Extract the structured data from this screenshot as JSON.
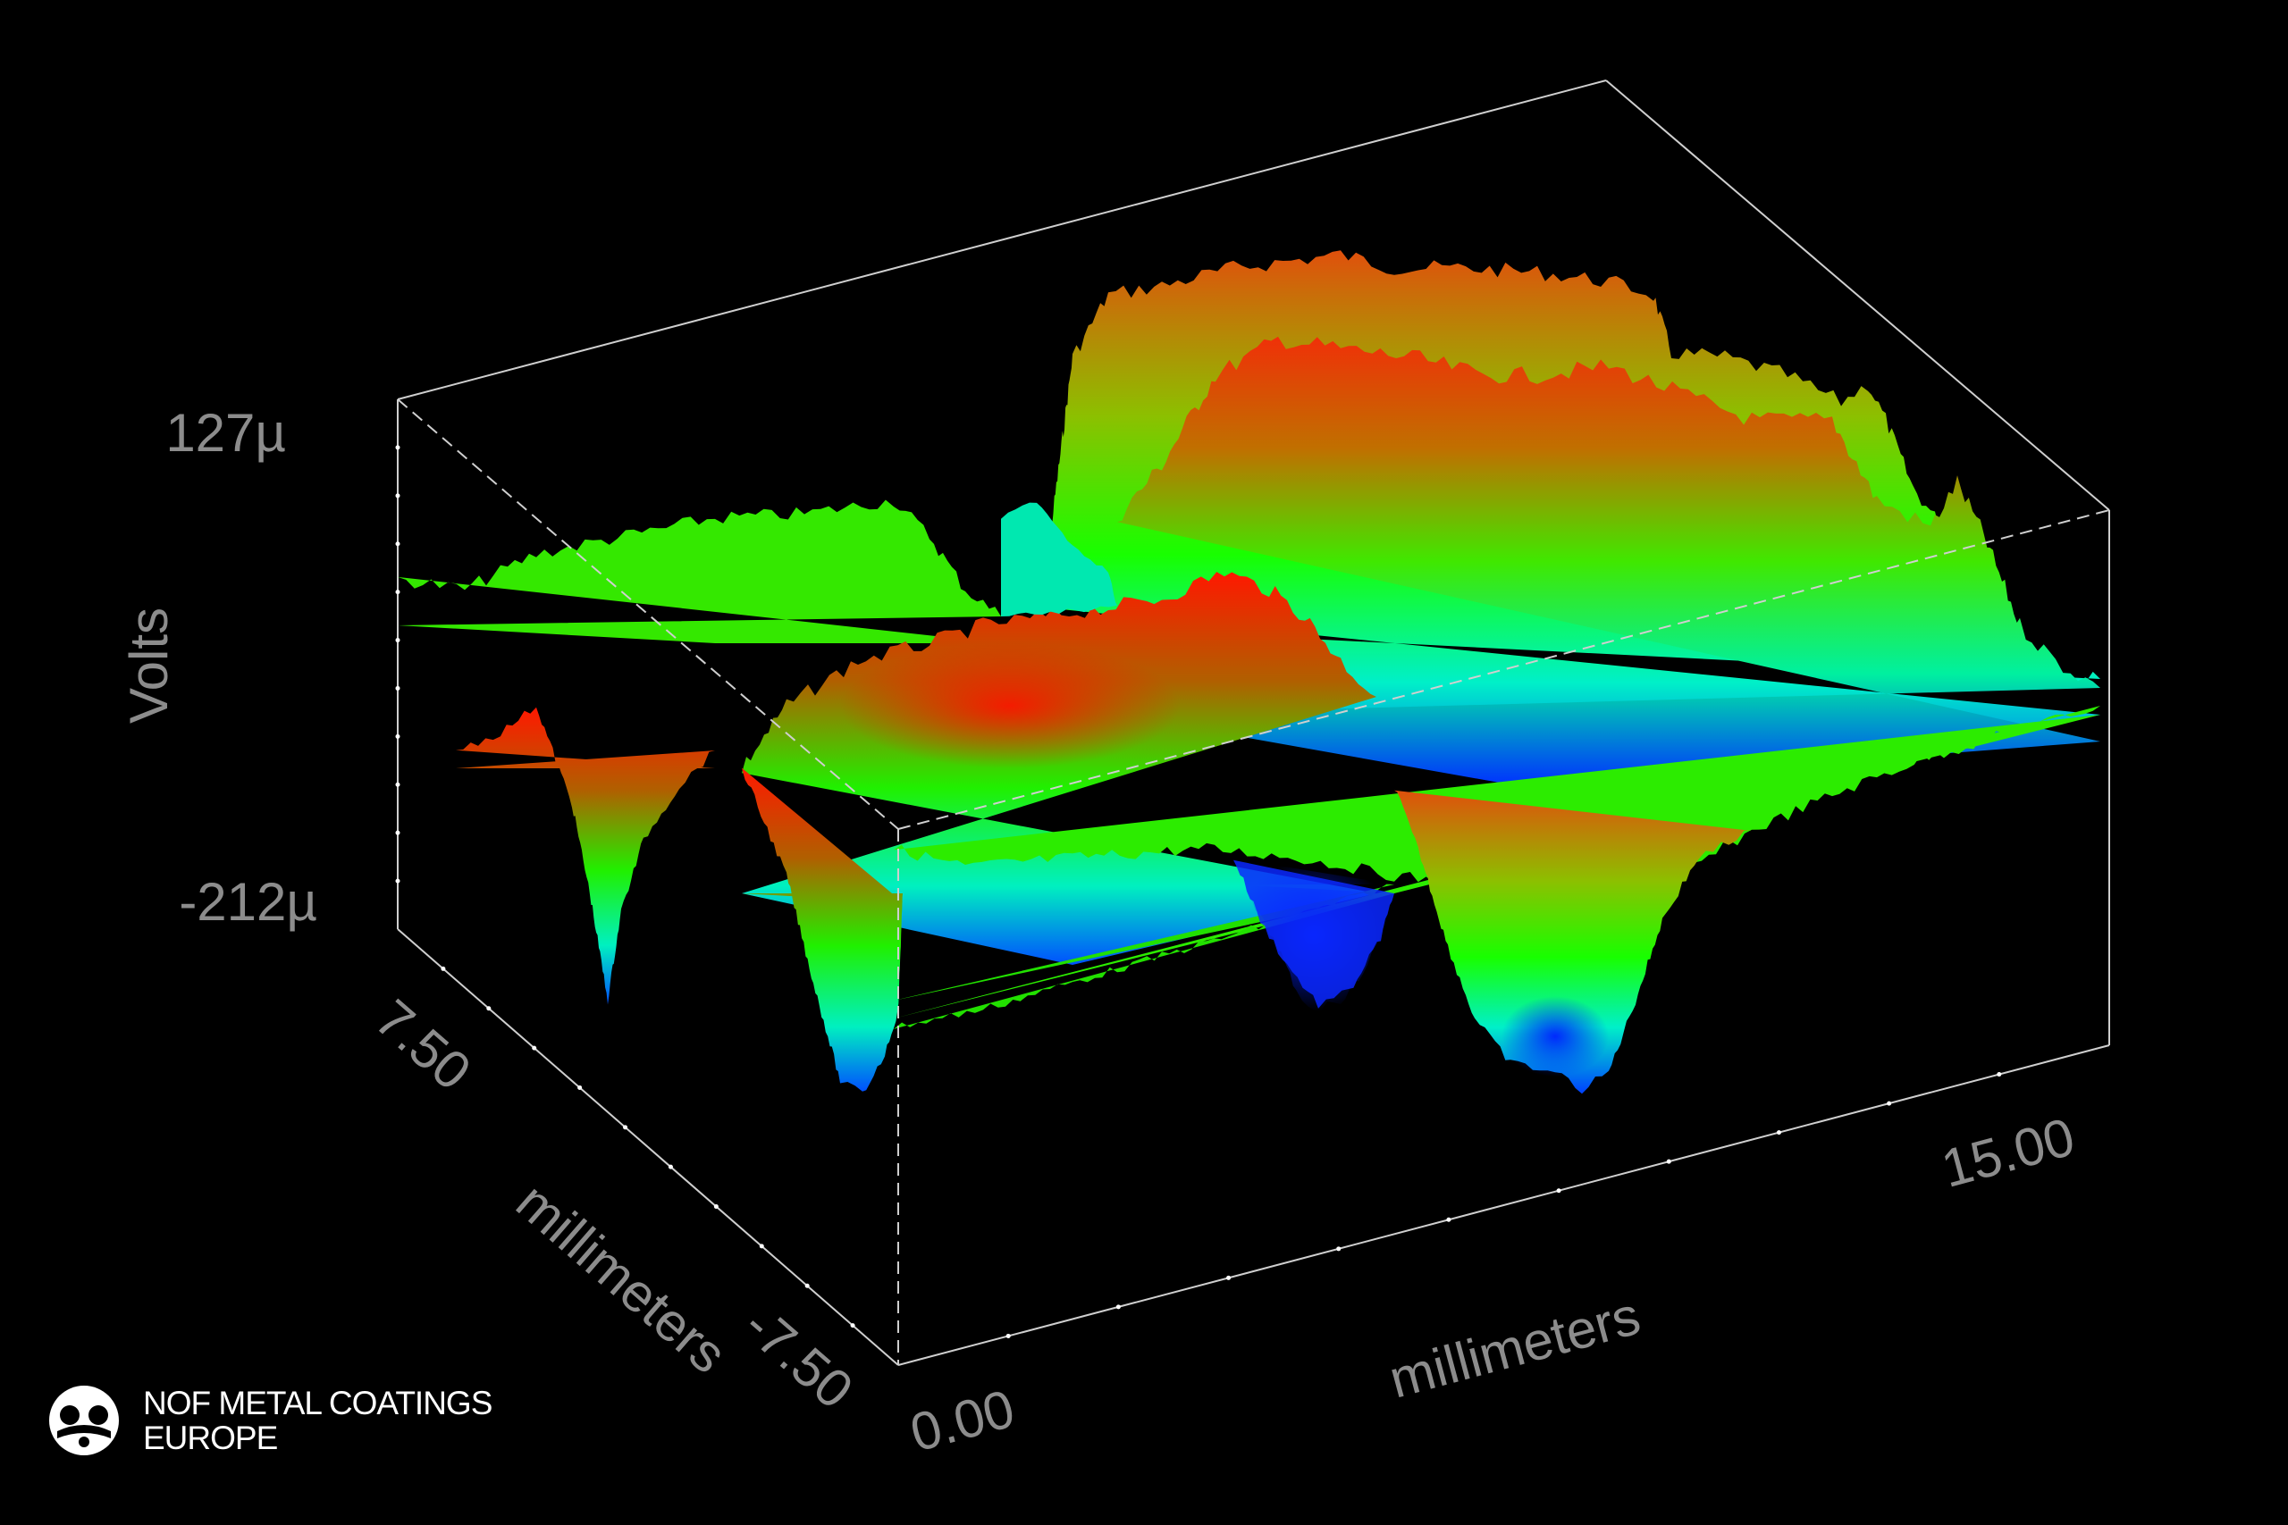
{
  "chart_data": {
    "type": "surface",
    "zlabel": "Volts",
    "xlabel": "millimeters",
    "ylabel": "millimeters",
    "z_ticks": [
      "127µ",
      "-212µ"
    ],
    "x_ticks": [
      "0.00",
      "15.00"
    ],
    "y_ticks": [
      "7.50",
      "-7.50"
    ],
    "zlim": [
      -0.000212,
      0.000127
    ],
    "xlim": [
      0,
      15
    ],
    "ylim": [
      -7.5,
      7.5
    ],
    "background": "#000000",
    "colors": {
      "high": "#ff1800",
      "mid": "#14ff00",
      "low_mid": "#00f0c8",
      "low": "#0028ff",
      "axis_box": "#cfcfcf",
      "axis_text": "#8c8c8c"
    },
    "surface_profile_rows": [
      {
        "y": 7.5,
        "z": [
          0,
          -10,
          -160,
          -15,
          -10,
          -5,
          20,
          25,
          -20,
          -40,
          -60,
          0,
          5,
          0,
          -5,
          -10
        ]
      },
      {
        "y": 0,
        "z": [
          5,
          0,
          -30,
          -10,
          15,
          35,
          40,
          35,
          -90,
          -120,
          30,
          20,
          25,
          30,
          15,
          0
        ]
      },
      {
        "y": -7.5,
        "z": [
          -10,
          -15,
          -40,
          -190,
          60,
          95,
          110,
          80,
          30,
          -5,
          -130,
          -150,
          -60,
          -10,
          -5,
          0
        ]
      }
    ]
  },
  "logo": {
    "line1": "NOF METAL COATINGS",
    "line2": "EUROPE",
    "icon": "nof-logo-icon"
  }
}
